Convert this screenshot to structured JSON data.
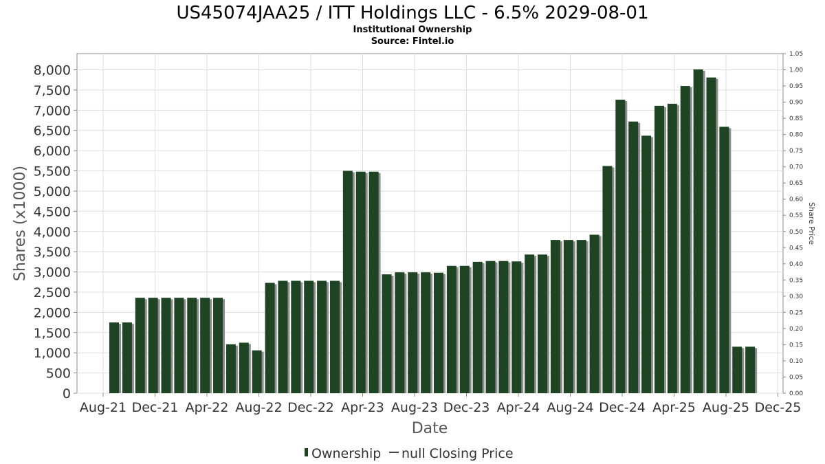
{
  "chart_data": {
    "type": "bar",
    "title": "US45074JAA25 / ITT Holdings LLC - 6.5% 2029-08-01",
    "subtitle": "Institutional Ownership",
    "source": "Source: Fintel.io",
    "xlabel": "Date",
    "ylabel": "Shares (x1000)",
    "y2label": "Share Price",
    "ylim": [
      0,
      8400
    ],
    "y2lim": [
      0,
      1.05
    ],
    "yticks": [
      "0",
      "500",
      "1,000",
      "1,500",
      "2,000",
      "2,500",
      "3,000",
      "3,500",
      "4,000",
      "4,500",
      "5,000",
      "5,500",
      "6,000",
      "6,500",
      "7,000",
      "7,500",
      "8,000"
    ],
    "y2ticks": [
      "0.00",
      "0.05",
      "0.10",
      "0.15",
      "0.20",
      "0.25",
      "0.30",
      "0.35",
      "0.40",
      "0.45",
      "0.50",
      "0.55",
      "0.60",
      "0.65",
      "0.70",
      "0.75",
      "0.80",
      "0.85",
      "0.90",
      "0.95",
      "1.00",
      "1.05"
    ],
    "xticks": [
      "Aug-21",
      "Dec-21",
      "Apr-22",
      "Aug-22",
      "Dec-22",
      "Apr-23",
      "Aug-23",
      "Dec-23",
      "Apr-24",
      "Aug-24",
      "Dec-24",
      "Apr-25",
      "Aug-25",
      "Dec-25"
    ],
    "series": [
      {
        "name": "Ownership",
        "color": "#1e4424",
        "values": [
          1750,
          1750,
          2360,
          2360,
          2360,
          2360,
          2360,
          2360,
          2360,
          1210,
          1250,
          1060,
          2730,
          2780,
          2780,
          2780,
          2780,
          2780,
          5500,
          5480,
          5480,
          2940,
          2990,
          2990,
          2990,
          2980,
          3150,
          3150,
          3250,
          3270,
          3270,
          3260,
          3430,
          3430,
          3790,
          3790,
          3790,
          3920,
          5620,
          7260,
          6720,
          6370,
          7110,
          7160,
          7600,
          8010,
          7810,
          6590,
          1150,
          1150
        ]
      }
    ],
    "legend": [
      {
        "name": "Ownership",
        "marker": "bar",
        "color": "#1e4424"
      },
      {
        "name": "null Closing Price",
        "marker": "line",
        "color": "#444444"
      }
    ]
  }
}
